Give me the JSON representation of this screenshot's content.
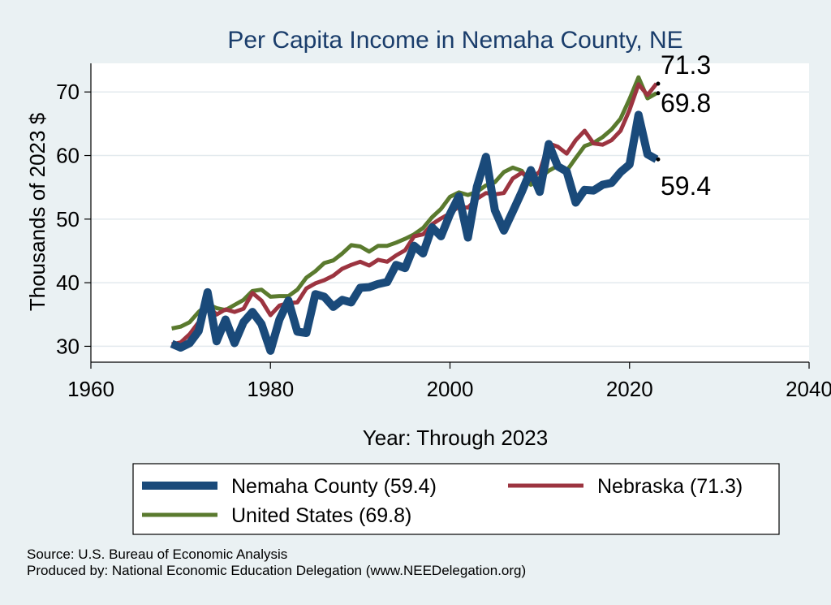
{
  "chart_data": {
    "type": "line",
    "title": "Per Capita Income in Nemaha County, NE",
    "xlabel": "Year: Through 2023",
    "ylabel": "Thousands of 2023 $",
    "xlim": [
      1960,
      2040
    ],
    "ylim": [
      27.5,
      74.5
    ],
    "xticks": [
      1960,
      1980,
      2000,
      2020,
      2040
    ],
    "yticks": [
      30,
      40,
      50,
      60,
      70
    ],
    "grid": true,
    "legend_position": "bottom",
    "series": [
      {
        "name": "Nemaha County",
        "legend_label": "Nemaha County (59.4)",
        "end_label": "59.4",
        "color": "#1a4a7a",
        "x": [
          1969,
          1970,
          1971,
          1972,
          1973,
          1974,
          1975,
          1976,
          1977,
          1978,
          1979,
          1980,
          1981,
          1982,
          1983,
          1984,
          1985,
          1986,
          1987,
          1988,
          1989,
          1990,
          1991,
          1992,
          1993,
          1994,
          1995,
          1996,
          1997,
          1998,
          1999,
          2000,
          2001,
          2002,
          2003,
          2004,
          2005,
          2006,
          2007,
          2008,
          2009,
          2010,
          2011,
          2012,
          2013,
          2014,
          2015,
          2016,
          2017,
          2018,
          2019,
          2020,
          2021,
          2022,
          2023
        ],
        "y": [
          30.4,
          29.8,
          30.5,
          32.4,
          38.5,
          30.8,
          34.2,
          30.5,
          33.8,
          35.4,
          33.5,
          29.3,
          34.2,
          37.2,
          32.3,
          32.1,
          38.2,
          37.8,
          36.2,
          37.3,
          36.9,
          39.2,
          39.3,
          39.8,
          40.1,
          42.8,
          42.3,
          45.8,
          44.6,
          48.7,
          47.3,
          50.8,
          53.6,
          47.1,
          55.1,
          59.8,
          51.4,
          48.2,
          51.2,
          54.3,
          57.7,
          54.3,
          61.8,
          58.3,
          57.5,
          52.6,
          54.6,
          54.5,
          55.4,
          55.7,
          57.4,
          58.6,
          66.4,
          60.2,
          59.4
        ]
      },
      {
        "name": "Nebraska",
        "legend_label": "Nebraska (71.3)",
        "end_label": "71.3",
        "color": "#9c3440",
        "x": [
          1969,
          1970,
          1971,
          1972,
          1973,
          1974,
          1975,
          1976,
          1977,
          1978,
          1979,
          1980,
          1981,
          1982,
          1983,
          1984,
          1985,
          1986,
          1987,
          1988,
          1989,
          1990,
          1991,
          1992,
          1993,
          1994,
          1995,
          1996,
          1997,
          1998,
          1999,
          2000,
          2001,
          2002,
          2003,
          2004,
          2005,
          2006,
          2007,
          2008,
          2009,
          2010,
          2011,
          2012,
          2013,
          2014,
          2015,
          2016,
          2017,
          2018,
          2019,
          2020,
          2021,
          2022,
          2023
        ],
        "y": [
          30.3,
          30.6,
          31.9,
          33.8,
          36.4,
          35.0,
          35.8,
          35.4,
          35.9,
          38.4,
          37.2,
          34.9,
          36.4,
          36.8,
          36.9,
          39.1,
          39.9,
          40.4,
          41.1,
          42.2,
          42.8,
          43.3,
          42.7,
          43.6,
          43.3,
          44.3,
          45.1,
          47.3,
          47.6,
          49.2,
          50.1,
          50.9,
          52.0,
          51.8,
          53.2,
          54.1,
          53.9,
          54.1,
          56.4,
          57.3,
          56.2,
          57.5,
          61.9,
          61.4,
          60.3,
          62.4,
          63.9,
          61.9,
          61.7,
          62.4,
          63.9,
          67.2,
          71.2,
          69.5,
          71.3
        ]
      },
      {
        "name": "United States",
        "legend_label": "United States (69.8)",
        "end_label": "69.8",
        "color": "#5a7a2e",
        "x": [
          1969,
          1970,
          1971,
          1972,
          1973,
          1974,
          1975,
          1976,
          1977,
          1978,
          1979,
          1980,
          1981,
          1982,
          1983,
          1984,
          1985,
          1986,
          1987,
          1988,
          1989,
          1990,
          1991,
          1992,
          1993,
          1994,
          1995,
          1996,
          1997,
          1998,
          1999,
          2000,
          2001,
          2002,
          2003,
          2004,
          2005,
          2006,
          2007,
          2008,
          2009,
          2010,
          2011,
          2012,
          2013,
          2014,
          2015,
          2016,
          2017,
          2018,
          2019,
          2020,
          2021,
          2022,
          2023
        ],
        "y": [
          32.8,
          33.1,
          33.8,
          35.4,
          36.6,
          36.0,
          35.7,
          36.5,
          37.3,
          38.7,
          38.9,
          37.8,
          37.9,
          37.9,
          38.9,
          40.8,
          41.8,
          43.1,
          43.5,
          44.6,
          45.9,
          45.7,
          44.9,
          45.8,
          45.8,
          46.3,
          46.9,
          47.6,
          48.6,
          50.3,
          51.6,
          53.5,
          54.2,
          53.8,
          54.3,
          55.3,
          55.8,
          57.4,
          58.1,
          57.6,
          55.4,
          56.5,
          57.6,
          58.4,
          57.6,
          59.6,
          61.5,
          62.0,
          62.9,
          64.1,
          65.8,
          68.9,
          72.3,
          69.0,
          69.8
        ]
      }
    ]
  },
  "source": {
    "line1": "Source: U.S. Bureau of Economic Analysis",
    "line2": "Produced by: National Economic Education Delegation (www.NEEDelegation.org)"
  }
}
